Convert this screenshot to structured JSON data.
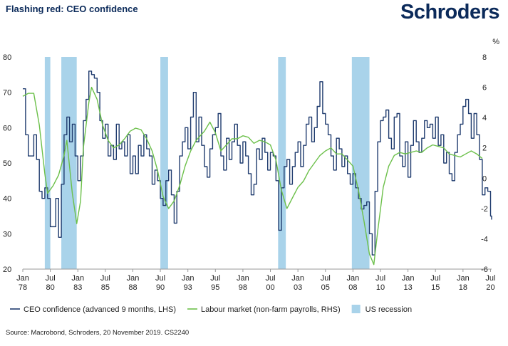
{
  "header": {
    "title": "Flashing red: CEO confidence",
    "brand": "Schroders"
  },
  "footer": {
    "source": "Source: Macrobond, Schroders, 20 November 2019. CS2240"
  },
  "colors": {
    "ceo": "#1f3b6e",
    "labour": "#6cc04a",
    "recession": "#a9d3ea",
    "axis": "#9a9a9a",
    "brand": "#0b2a5a"
  },
  "chart_data": {
    "type": "line",
    "title": "Flashing red: CEO confidence",
    "x_range": [
      1978.0,
      2020.6
    ],
    "x_ticks": [
      {
        "label": [
          "Jan",
          "78"
        ],
        "x": 1978.0
      },
      {
        "label": [
          "Jul",
          "80"
        ],
        "x": 1980.5
      },
      {
        "label": [
          "Jan",
          "83"
        ],
        "x": 1983.0
      },
      {
        "label": [
          "Jul",
          "85"
        ],
        "x": 1985.5
      },
      {
        "label": [
          "Jan",
          "88"
        ],
        "x": 1988.0
      },
      {
        "label": [
          "Jul",
          "90"
        ],
        "x": 1990.5
      },
      {
        "label": [
          "Jan",
          "93"
        ],
        "x": 1993.0
      },
      {
        "label": [
          "Jul",
          "95"
        ],
        "x": 1995.5
      },
      {
        "label": [
          "Jan",
          "98"
        ],
        "x": 1998.0
      },
      {
        "label": [
          "Jul",
          "00"
        ],
        "x": 2000.5
      },
      {
        "label": [
          "Jan",
          "03"
        ],
        "x": 2003.0
      },
      {
        "label": [
          "Jul",
          "05"
        ],
        "x": 2005.5
      },
      {
        "label": [
          "Jan",
          "08"
        ],
        "x": 2008.0
      },
      {
        "label": [
          "Jul",
          "10"
        ],
        "x": 2010.5
      },
      {
        "label": [
          "Jan",
          "13"
        ],
        "x": 2013.0
      },
      {
        "label": [
          "Jul",
          "15"
        ],
        "x": 2015.5
      },
      {
        "label": [
          "Jan",
          "18"
        ],
        "x": 2018.0
      },
      {
        "label": [
          "Jul",
          "20"
        ],
        "x": 2020.5
      }
    ],
    "y_left": {
      "min": 20,
      "max": 80,
      "ticks": [
        20,
        30,
        40,
        50,
        60,
        70,
        80
      ],
      "label": ""
    },
    "y_right": {
      "min": -6,
      "max": 8,
      "ticks": [
        -6,
        -4,
        -2,
        0,
        2,
        4,
        6,
        8
      ],
      "unit": "%"
    },
    "legend": [
      {
        "key": "ceo",
        "label": "CEO confidence (advanced 9 months, LHS)",
        "marker": "line"
      },
      {
        "key": "labour",
        "label": "Labour market (non-farm payrolls, RHS)",
        "marker": "line"
      },
      {
        "key": "recession",
        "label": "US recession",
        "marker": "box"
      }
    ],
    "recessions": [
      [
        1980.0,
        1980.5
      ],
      [
        1981.5,
        1982.9
      ],
      [
        1990.5,
        1991.2
      ],
      [
        2001.2,
        2001.9
      ],
      [
        2007.9,
        2009.5
      ]
    ],
    "series": [
      {
        "name": "CEO confidence (advanced 9 months, LHS)",
        "axis": "left",
        "points": [
          [
            1978.0,
            71
          ],
          [
            1978.25,
            58
          ],
          [
            1978.5,
            52
          ],
          [
            1978.75,
            52
          ],
          [
            1979.0,
            58
          ],
          [
            1979.25,
            51
          ],
          [
            1979.5,
            42
          ],
          [
            1979.75,
            40
          ],
          [
            1980.0,
            43
          ],
          [
            1980.25,
            40
          ],
          [
            1980.5,
            32
          ],
          [
            1980.75,
            32
          ],
          [
            1981.0,
            40
          ],
          [
            1981.25,
            29
          ],
          [
            1981.5,
            44
          ],
          [
            1981.75,
            58
          ],
          [
            1982.0,
            63
          ],
          [
            1982.25,
            56
          ],
          [
            1982.5,
            61
          ],
          [
            1982.75,
            52
          ],
          [
            1983.0,
            45
          ],
          [
            1983.25,
            52
          ],
          [
            1983.5,
            62
          ],
          [
            1983.75,
            68
          ],
          [
            1984.0,
            76
          ],
          [
            1984.25,
            75
          ],
          [
            1984.5,
            74
          ],
          [
            1984.75,
            70
          ],
          [
            1985.0,
            62
          ],
          [
            1985.25,
            57
          ],
          [
            1985.5,
            61
          ],
          [
            1985.75,
            52
          ],
          [
            1986.0,
            55
          ],
          [
            1986.25,
            51
          ],
          [
            1986.5,
            61
          ],
          [
            1986.75,
            54
          ],
          [
            1987.0,
            56
          ],
          [
            1987.25,
            52
          ],
          [
            1987.5,
            58
          ],
          [
            1987.75,
            47
          ],
          [
            1988.0,
            52
          ],
          [
            1988.25,
            47
          ],
          [
            1988.5,
            55
          ],
          [
            1988.75,
            52
          ],
          [
            1989.0,
            58
          ],
          [
            1989.25,
            54
          ],
          [
            1989.5,
            52
          ],
          [
            1989.75,
            44
          ],
          [
            1990.0,
            48
          ],
          [
            1990.25,
            45
          ],
          [
            1990.5,
            40
          ],
          [
            1990.75,
            38
          ],
          [
            1991.0,
            45
          ],
          [
            1991.25,
            48
          ],
          [
            1991.5,
            41
          ],
          [
            1991.75,
            33
          ],
          [
            1992.0,
            42
          ],
          [
            1992.25,
            52
          ],
          [
            1992.5,
            56
          ],
          [
            1992.75,
            60
          ],
          [
            1993.0,
            54
          ],
          [
            1993.25,
            63
          ],
          [
            1993.5,
            70
          ],
          [
            1993.75,
            56
          ],
          [
            1994.0,
            63
          ],
          [
            1994.25,
            55
          ],
          [
            1994.5,
            49
          ],
          [
            1994.75,
            46
          ],
          [
            1995.0,
            54
          ],
          [
            1995.25,
            58
          ],
          [
            1995.5,
            60
          ],
          [
            1995.75,
            64
          ],
          [
            1996.0,
            52
          ],
          [
            1996.25,
            48
          ],
          [
            1996.5,
            57
          ],
          [
            1996.75,
            51
          ],
          [
            1997.0,
            56
          ],
          [
            1997.25,
            61
          ],
          [
            1997.5,
            55
          ],
          [
            1997.75,
            50
          ],
          [
            1998.0,
            56
          ],
          [
            1998.25,
            52
          ],
          [
            1998.5,
            47
          ],
          [
            1998.75,
            41
          ],
          [
            1999.0,
            44
          ],
          [
            1999.25,
            54
          ],
          [
            1999.5,
            51
          ],
          [
            1999.75,
            57
          ],
          [
            2000.0,
            53
          ],
          [
            2000.25,
            48
          ],
          [
            2000.5,
            53
          ],
          [
            2000.75,
            52
          ],
          [
            2001.0,
            45
          ],
          [
            2001.25,
            31
          ],
          [
            2001.5,
            43
          ],
          [
            2001.75,
            49
          ],
          [
            2002.0,
            51
          ],
          [
            2002.25,
            44
          ],
          [
            2002.5,
            49
          ],
          [
            2002.75,
            53
          ],
          [
            2003.0,
            56
          ],
          [
            2003.25,
            49
          ],
          [
            2003.5,
            55
          ],
          [
            2003.75,
            61
          ],
          [
            2004.0,
            63
          ],
          [
            2004.25,
            56
          ],
          [
            2004.5,
            60
          ],
          [
            2004.75,
            66
          ],
          [
            2005.0,
            73
          ],
          [
            2005.25,
            64
          ],
          [
            2005.5,
            61
          ],
          [
            2005.75,
            58
          ],
          [
            2006.0,
            52
          ],
          [
            2006.25,
            48
          ],
          [
            2006.5,
            57
          ],
          [
            2006.75,
            54
          ],
          [
            2007.0,
            49
          ],
          [
            2007.25,
            52
          ],
          [
            2007.5,
            47
          ],
          [
            2007.75,
            44
          ],
          [
            2008.0,
            47
          ],
          [
            2008.25,
            43
          ],
          [
            2008.5,
            40
          ],
          [
            2008.75,
            37
          ],
          [
            2009.0,
            38
          ],
          [
            2009.25,
            39
          ],
          [
            2009.5,
            30
          ],
          [
            2009.75,
            24
          ],
          [
            2010.0,
            42
          ],
          [
            2010.25,
            56
          ],
          [
            2010.5,
            62
          ],
          [
            2010.75,
            63
          ],
          [
            2011.0,
            65
          ],
          [
            2011.25,
            57
          ],
          [
            2011.5,
            54
          ],
          [
            2011.75,
            63
          ],
          [
            2012.0,
            64
          ],
          [
            2012.25,
            52
          ],
          [
            2012.5,
            49
          ],
          [
            2012.75,
            56
          ],
          [
            2013.0,
            46
          ],
          [
            2013.25,
            55
          ],
          [
            2013.5,
            62
          ],
          [
            2013.75,
            56
          ],
          [
            2014.0,
            53
          ],
          [
            2014.25,
            57
          ],
          [
            2014.5,
            62
          ],
          [
            2014.75,
            60
          ],
          [
            2015.0,
            61
          ],
          [
            2015.25,
            57
          ],
          [
            2015.5,
            63
          ],
          [
            2015.75,
            55
          ],
          [
            2016.0,
            58
          ],
          [
            2016.25,
            50
          ],
          [
            2016.5,
            53
          ],
          [
            2016.75,
            47
          ],
          [
            2017.0,
            45
          ],
          [
            2017.25,
            53
          ],
          [
            2017.5,
            58
          ],
          [
            2017.75,
            61
          ],
          [
            2018.0,
            66
          ],
          [
            2018.25,
            68
          ],
          [
            2018.5,
            64
          ],
          [
            2018.75,
            57
          ],
          [
            2019.0,
            64
          ],
          [
            2019.25,
            58
          ],
          [
            2019.5,
            51
          ],
          [
            2019.75,
            41
          ],
          [
            2020.0,
            43
          ],
          [
            2020.25,
            42
          ],
          [
            2020.5,
            35
          ],
          [
            2020.6,
            34
          ]
        ]
      },
      {
        "name": "Labour market (non-farm payrolls, RHS)",
        "axis": "right",
        "points": [
          [
            1978.0,
            5.4
          ],
          [
            1978.5,
            5.6
          ],
          [
            1979.0,
            5.6
          ],
          [
            1979.5,
            3.5
          ],
          [
            1980.0,
            0.3
          ],
          [
            1980.25,
            -1.0
          ],
          [
            1980.75,
            -0.5
          ],
          [
            1981.25,
            0.2
          ],
          [
            1981.75,
            1.5
          ],
          [
            1982.0,
            2.5
          ],
          [
            1982.5,
            -1.0
          ],
          [
            1982.9,
            -3.0
          ],
          [
            1983.25,
            -1.5
          ],
          [
            1983.5,
            2.0
          ],
          [
            1984.0,
            5.0
          ],
          [
            1984.25,
            6.0
          ],
          [
            1984.75,
            5.2
          ],
          [
            1985.25,
            3.5
          ],
          [
            1985.75,
            2.5
          ],
          [
            1986.25,
            2.0
          ],
          [
            1986.75,
            2.2
          ],
          [
            1987.25,
            2.6
          ],
          [
            1987.75,
            3.1
          ],
          [
            1988.25,
            3.3
          ],
          [
            1988.75,
            3.2
          ],
          [
            1989.25,
            2.6
          ],
          [
            1989.75,
            1.8
          ],
          [
            1990.25,
            0.5
          ],
          [
            1990.75,
            -1.2
          ],
          [
            1991.25,
            -2.0
          ],
          [
            1991.75,
            -1.5
          ],
          [
            1992.25,
            -0.5
          ],
          [
            1992.75,
            0.8
          ],
          [
            1993.25,
            1.8
          ],
          [
            1993.75,
            2.5
          ],
          [
            1994.5,
            3.1
          ],
          [
            1995.0,
            3.7
          ],
          [
            1995.5,
            3.0
          ],
          [
            1996.0,
            1.8
          ],
          [
            1996.5,
            2.2
          ],
          [
            1997.0,
            2.6
          ],
          [
            1997.5,
            2.6
          ],
          [
            1998.0,
            2.8
          ],
          [
            1998.5,
            2.7
          ],
          [
            1999.0,
            2.3
          ],
          [
            1999.5,
            2.5
          ],
          [
            2000.0,
            2.4
          ],
          [
            2000.5,
            2.2
          ],
          [
            2001.0,
            1.2
          ],
          [
            2001.5,
            -0.8
          ],
          [
            2002.0,
            -2.0
          ],
          [
            2002.5,
            -1.3
          ],
          [
            2003.0,
            -0.6
          ],
          [
            2003.5,
            -0.2
          ],
          [
            2004.0,
            0.5
          ],
          [
            2004.5,
            1.0
          ],
          [
            2005.0,
            1.5
          ],
          [
            2005.5,
            1.8
          ],
          [
            2006.0,
            2.0
          ],
          [
            2006.5,
            1.6
          ],
          [
            2007.0,
            1.6
          ],
          [
            2007.5,
            1.2
          ],
          [
            2008.0,
            0.8
          ],
          [
            2008.5,
            -0.8
          ],
          [
            2009.0,
            -2.8
          ],
          [
            2009.5,
            -5.0
          ],
          [
            2009.9,
            -5.7
          ],
          [
            2010.25,
            -3.5
          ],
          [
            2010.75,
            -0.6
          ],
          [
            2011.25,
            0.8
          ],
          [
            2011.75,
            1.5
          ],
          [
            2012.25,
            1.7
          ],
          [
            2012.75,
            1.6
          ],
          [
            2013.25,
            1.7
          ],
          [
            2013.75,
            1.8
          ],
          [
            2014.25,
            1.7
          ],
          [
            2014.75,
            2.0
          ],
          [
            2015.25,
            2.2
          ],
          [
            2015.75,
            2.1
          ],
          [
            2016.25,
            2.0
          ],
          [
            2016.75,
            1.6
          ],
          [
            2017.25,
            1.5
          ],
          [
            2017.75,
            1.4
          ],
          [
            2018.25,
            1.6
          ],
          [
            2018.75,
            1.8
          ],
          [
            2019.25,
            1.6
          ],
          [
            2019.75,
            1.3
          ]
        ]
      }
    ]
  }
}
